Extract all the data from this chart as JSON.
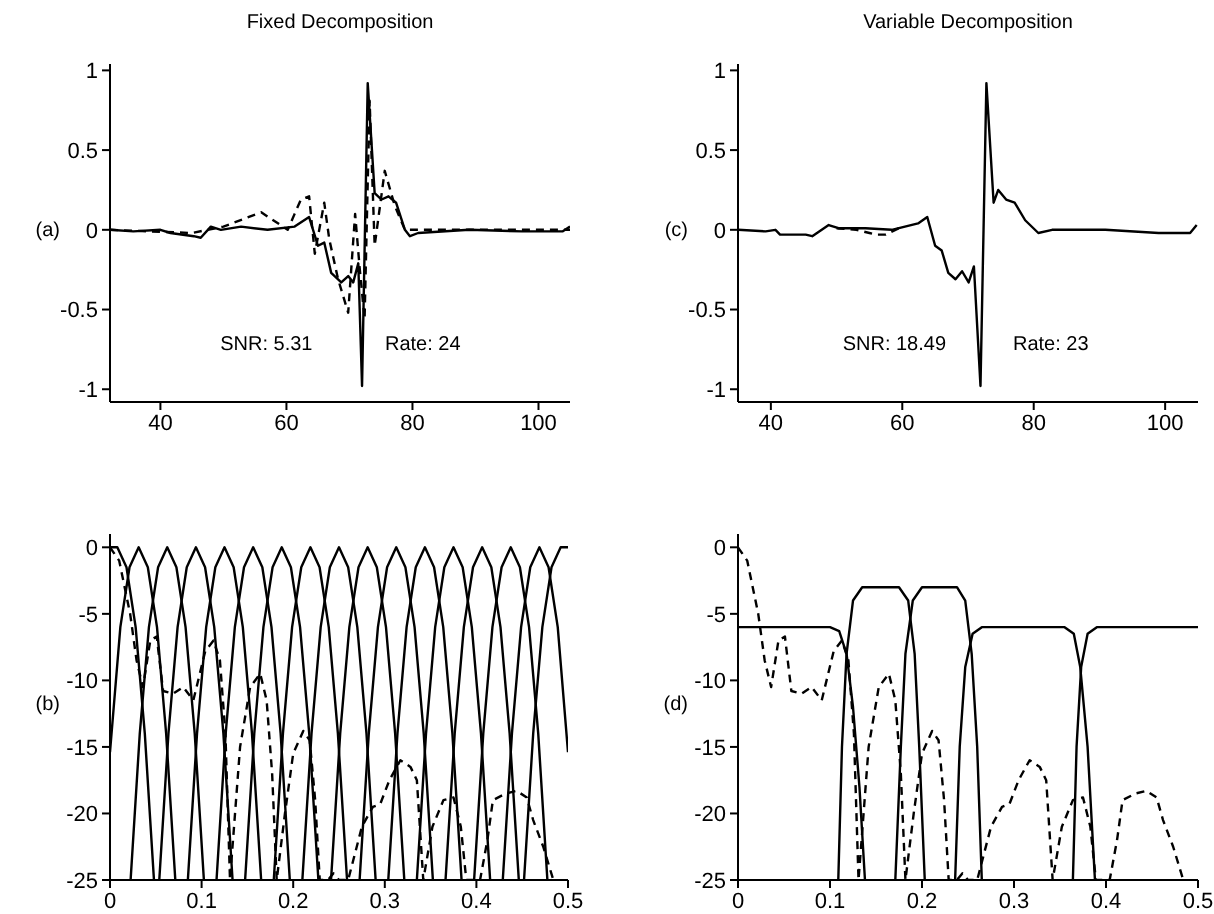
{
  "chart_data": [
    {
      "type": "line",
      "title": "Fixed Decomposition",
      "ylabel": "(a)",
      "xlim": [
        32,
        105
      ],
      "xticks": [
        40,
        60,
        80,
        100
      ],
      "ylim": [
        -1.08,
        1.04
      ],
      "yticks": [
        -1,
        -0.5,
        0,
        0.5,
        1
      ],
      "marker": "none",
      "annotations": [
        "SNR: 5.31",
        "Rate: 24"
      ],
      "series": [
        {
          "color": "#000000",
          "line_style": "dashed",
          "x": [
            32,
            45,
            50,
            56,
            60.2,
            61.3,
            62.3,
            63.6,
            64.5,
            66,
            66.8,
            68.2,
            69.8,
            70.9,
            71.6,
            72.4,
            73.2,
            74,
            75.6,
            77.2,
            78.8,
            80.4,
            90,
            105
          ],
          "values": [
            0,
            -0.02,
            0.02,
            0.11,
            0,
            0.1,
            0.19,
            0.21,
            -0.15,
            0.17,
            -0.06,
            -0.31,
            -0.52,
            0.1,
            -0.23,
            -0.56,
            0.81,
            -0.1,
            0.37,
            0.15,
            0,
            0,
            0,
            0
          ]
        },
        {
          "color": "#000000",
          "line_style": "solid",
          "x": [
            32,
            35.7,
            40,
            41.6,
            45.3,
            46.4,
            48,
            49.6,
            52.8,
            57,
            61.3,
            63.6,
            65,
            66,
            67.1,
            68.7,
            69.8,
            70.6,
            71.4,
            72,
            72.9,
            74,
            75.1,
            76.2,
            77.4,
            78.8,
            79.6,
            80.9,
            89,
            97.4,
            103.8,
            105
          ],
          "values": [
            0,
            -0.01,
            0,
            -0.02,
            -0.04,
            -0.05,
            0.02,
            0,
            0.02,
            0,
            0.02,
            0.08,
            -0.1,
            -0.08,
            -0.27,
            -0.33,
            -0.29,
            -0.33,
            -0.21,
            -0.98,
            0.92,
            0.23,
            0.19,
            0.21,
            0.17,
            0,
            -0.04,
            -0.02,
            0,
            -0.01,
            -0.01,
            0.02
          ]
        }
      ]
    },
    {
      "type": "line",
      "title": "Variable Decomposition",
      "ylabel": "(c)",
      "xlim": [
        35,
        105
      ],
      "xticks": [
        40,
        60,
        80,
        100
      ],
      "ylim": [
        -1.08,
        1.04
      ],
      "yticks": [
        -1,
        -0.5,
        0,
        0.5,
        1
      ],
      "marker": "none",
      "annotations": [
        "SNR: 18.49",
        "Rate: 23"
      ],
      "series": [
        {
          "color": "#000000",
          "line_style": "dashed",
          "x": [
            50,
            53,
            55,
            56,
            57.5,
            60
          ],
          "values": [
            0.01,
            0,
            -0.02,
            -0.03,
            -0.03,
            0.02
          ]
        },
        {
          "color": "#000000",
          "line_style": "solid",
          "x": [
            35,
            39.2,
            40.7,
            41.4,
            45.3,
            46.3,
            48.8,
            50.3,
            54.4,
            58.4,
            60.4,
            62.4,
            63.8,
            65,
            66,
            67,
            68.1,
            69.1,
            70.1,
            70.9,
            71.9,
            72.8,
            73.9,
            74.6,
            75.8,
            77.1,
            78.7,
            80.7,
            82.8,
            90.9,
            99,
            103.8,
            104.8
          ],
          "values": [
            0,
            -0.01,
            0,
            -0.03,
            -0.03,
            -0.04,
            0.03,
            0.01,
            0.01,
            0,
            0.02,
            0.04,
            0.08,
            -0.1,
            -0.13,
            -0.27,
            -0.31,
            -0.26,
            -0.33,
            -0.23,
            -0.98,
            0.92,
            0.17,
            0.25,
            0.19,
            0.17,
            0.06,
            -0.02,
            0,
            0,
            -0.02,
            -0.02,
            0.03
          ]
        }
      ]
    },
    {
      "type": "line",
      "ylabel": "(b)",
      "xlim": [
        0,
        0.5
      ],
      "xticks": [
        0,
        0.1,
        0.2,
        0.3,
        0.4,
        0.5
      ],
      "ylim": [
        -25,
        1
      ],
      "yticks": [
        -25,
        -20,
        -15,
        -10,
        -5,
        0
      ],
      "marker": "none",
      "series": [
        {
          "color": "#000000",
          "line_style": "dashed",
          "x": [
            0,
            0.01,
            0.022,
            0.029,
            0.036,
            0.044,
            0.051,
            0.058,
            0.069,
            0.08,
            0.091,
            0.104,
            0.113,
            0.12,
            0.126,
            0.131,
            0.142,
            0.153,
            0.164,
            0.171,
            0.177,
            0.182,
            0.191,
            0.2,
            0.211,
            0.218,
            0.224,
            0.229,
            0.238,
            0.244,
            0.25,
            0.26,
            0.275,
            0.287,
            0.295,
            0.305,
            0.317,
            0.328,
            0.335,
            0.342,
            0.352,
            0.364,
            0.375,
            0.383,
            0.389,
            0.404,
            0.412,
            0.418,
            0.432,
            0.444,
            0.455,
            0.462,
            0.473,
            0.484
          ],
          "values": [
            0,
            -1,
            -5,
            -8.5,
            -10.5,
            -7,
            -6.7,
            -10.8,
            -11,
            -10.5,
            -11.5,
            -7.8,
            -7,
            -8.5,
            -14,
            -25,
            -15,
            -10.5,
            -9.5,
            -11.5,
            -17,
            -25,
            -20,
            -15.5,
            -13.8,
            -14.5,
            -19,
            -25,
            -25,
            -24.5,
            -25,
            -25,
            -21,
            -19.5,
            -19.3,
            -17.5,
            -16,
            -16.5,
            -17.5,
            -25,
            -21,
            -19,
            -18.8,
            -21,
            -25,
            -25,
            -22,
            -19,
            -18.5,
            -18.3,
            -18.8,
            -20.5,
            -22.5,
            -25
          ]
        },
        {
          "color": "#000000",
          "line_style": "solid",
          "x": [
            0,
            0.008,
            0.018,
            0.028,
            0.038,
            0.048
          ],
          "values": [
            0,
            0,
            -1.5,
            -6,
            -14,
            -25
          ]
        },
        {
          "color": "#000000",
          "line_style": "solid",
          "x": [
            0,
            0.0113,
            0.0213,
            0.0313,
            0.0413,
            0.0513,
            0.0613,
            0.0713
          ],
          "values": [
            -15.4,
            -6,
            -1.5,
            0,
            -1.5,
            -6,
            -14,
            -25
          ]
        },
        {
          "color": "#000000",
          "line_style": "solid",
          "x": [
            0.0225,
            0.0325,
            0.0425,
            0.0525,
            0.0625,
            0.0725,
            0.0825,
            0.0925,
            0.1025
          ],
          "values": [
            -25,
            -14,
            -6,
            -1.5,
            0,
            -1.5,
            -6,
            -14,
            -25
          ]
        },
        {
          "color": "#000000",
          "line_style": "solid",
          "x": [
            0.0538,
            0.0638,
            0.0738,
            0.0838,
            0.0938,
            0.1038,
            0.1138,
            0.1238,
            0.1338
          ],
          "values": [
            -25,
            -14,
            -6,
            -1.5,
            0,
            -1.5,
            -6,
            -14,
            -25
          ]
        },
        {
          "color": "#000000",
          "line_style": "solid",
          "x": [
            0.085,
            0.095,
            0.105,
            0.115,
            0.125,
            0.135,
            0.145,
            0.155,
            0.165
          ],
          "values": [
            -25,
            -14,
            -6,
            -1.5,
            0,
            -1.5,
            -6,
            -14,
            -25
          ]
        },
        {
          "color": "#000000",
          "line_style": "solid",
          "x": [
            0.1163,
            0.1263,
            0.1363,
            0.1463,
            0.1563,
            0.1663,
            0.1763,
            0.1863,
            0.1963
          ],
          "values": [
            -25,
            -14,
            -6,
            -1.5,
            0,
            -1.5,
            -6,
            -14,
            -25
          ]
        },
        {
          "color": "#000000",
          "line_style": "solid",
          "x": [
            0.1475,
            0.1575,
            0.1675,
            0.1775,
            0.1875,
            0.1975,
            0.2075,
            0.2175,
            0.2275
          ],
          "values": [
            -25,
            -14,
            -6,
            -1.5,
            0,
            -1.5,
            -6,
            -14,
            -25
          ]
        },
        {
          "color": "#000000",
          "line_style": "solid",
          "x": [
            0.1788,
            0.1888,
            0.1988,
            0.2088,
            0.2188,
            0.2288,
            0.2388,
            0.2488,
            0.2588
          ],
          "values": [
            -25,
            -14,
            -6,
            -1.5,
            0,
            -1.5,
            -6,
            -14,
            -25
          ]
        },
        {
          "color": "#000000",
          "line_style": "solid",
          "x": [
            0.21,
            0.22,
            0.23,
            0.24,
            0.25,
            0.26,
            0.27,
            0.28,
            0.29
          ],
          "values": [
            -25,
            -14,
            -6,
            -1.5,
            0,
            -1.5,
            -6,
            -14,
            -25
          ]
        },
        {
          "color": "#000000",
          "line_style": "solid",
          "x": [
            0.2413,
            0.2513,
            0.2613,
            0.2713,
            0.2813,
            0.2913,
            0.3013,
            0.3113,
            0.3213
          ],
          "values": [
            -25,
            -14,
            -6,
            -1.5,
            0,
            -1.5,
            -6,
            -14,
            -25
          ]
        },
        {
          "color": "#000000",
          "line_style": "solid",
          "x": [
            0.2725,
            0.2825,
            0.2925,
            0.3025,
            0.3125,
            0.3225,
            0.3325,
            0.3425,
            0.3525
          ],
          "values": [
            -25,
            -14,
            -6,
            -1.5,
            0,
            -1.5,
            -6,
            -14,
            -25
          ]
        },
        {
          "color": "#000000",
          "line_style": "solid",
          "x": [
            0.3038,
            0.3138,
            0.3238,
            0.3338,
            0.3438,
            0.3538,
            0.3638,
            0.3738,
            0.3838
          ],
          "values": [
            -25,
            -14,
            -6,
            -1.5,
            0,
            -1.5,
            -6,
            -14,
            -25
          ]
        },
        {
          "color": "#000000",
          "line_style": "solid",
          "x": [
            0.335,
            0.345,
            0.355,
            0.365,
            0.375,
            0.385,
            0.395,
            0.405,
            0.415
          ],
          "values": [
            -25,
            -14,
            -6,
            -1.5,
            0,
            -1.5,
            -6,
            -14,
            -25
          ]
        },
        {
          "color": "#000000",
          "line_style": "solid",
          "x": [
            0.3663,
            0.3763,
            0.3863,
            0.3963,
            0.4063,
            0.4163,
            0.4263,
            0.4363,
            0.4463
          ],
          "values": [
            -25,
            -14,
            -6,
            -1.5,
            0,
            -1.5,
            -6,
            -14,
            -25
          ]
        },
        {
          "color": "#000000",
          "line_style": "solid",
          "x": [
            0.3975,
            0.4075,
            0.4175,
            0.4275,
            0.4375,
            0.4475,
            0.4575,
            0.4675,
            0.4775
          ],
          "values": [
            -25,
            -14,
            -6,
            -1.5,
            0,
            -1.5,
            -6,
            -14,
            -25
          ]
        },
        {
          "color": "#000000",
          "line_style": "solid",
          "x": [
            0.4288,
            0.4388,
            0.4488,
            0.4588,
            0.4688,
            0.4788,
            0.4888,
            0.5
          ],
          "values": [
            -25,
            -14,
            -6,
            -1.5,
            0,
            -1.5,
            -6,
            -15.4
          ]
        },
        {
          "color": "#000000",
          "line_style": "solid",
          "x": [
            0.452,
            0.462,
            0.472,
            0.482,
            0.492,
            0.5
          ],
          "values": [
            -25,
            -14,
            -6,
            -1.5,
            0,
            0
          ]
        }
      ]
    },
    {
      "type": "line",
      "ylabel": "(d)",
      "xlim": [
        0,
        0.5
      ],
      "xticks": [
        0,
        0.1,
        0.2,
        0.3,
        0.4,
        0.5
      ],
      "ylim": [
        -25,
        1
      ],
      "yticks": [
        -25,
        -20,
        -15,
        -10,
        -5,
        0
      ],
      "marker": "none",
      "series": [
        {
          "color": "#000000",
          "line_style": "dashed",
          "x": [
            0,
            0.01,
            0.022,
            0.029,
            0.036,
            0.044,
            0.051,
            0.058,
            0.069,
            0.08,
            0.091,
            0.104,
            0.113,
            0.12,
            0.126,
            0.131,
            0.142,
            0.153,
            0.164,
            0.171,
            0.177,
            0.182,
            0.191,
            0.2,
            0.211,
            0.218,
            0.224,
            0.229,
            0.238,
            0.244,
            0.25,
            0.26,
            0.275,
            0.287,
            0.295,
            0.305,
            0.317,
            0.328,
            0.335,
            0.342,
            0.352,
            0.364,
            0.375,
            0.383,
            0.389,
            0.404,
            0.412,
            0.418,
            0.432,
            0.444,
            0.455,
            0.462,
            0.473,
            0.484
          ],
          "values": [
            0,
            -1,
            -5,
            -8.5,
            -10.5,
            -7,
            -6.7,
            -10.8,
            -11,
            -10.5,
            -11.5,
            -7.8,
            -7,
            -8.5,
            -14,
            -25,
            -15,
            -10.5,
            -9.5,
            -11.5,
            -17,
            -25,
            -20,
            -15.5,
            -13.8,
            -14.5,
            -19,
            -25,
            -25,
            -24.5,
            -25,
            -25,
            -21,
            -19.5,
            -19.3,
            -17.5,
            -16,
            -16.5,
            -17.5,
            -25,
            -21,
            -19,
            -18.8,
            -21,
            -25,
            -25,
            -22,
            -19,
            -18.5,
            -18.3,
            -18.8,
            -20.5,
            -22.5,
            -25
          ]
        },
        {
          "color": "#000000",
          "line_style": "solid",
          "x": [
            0,
            0.1,
            0.11,
            0.118,
            0.125,
            0.132,
            0.138
          ],
          "values": [
            -6,
            -6,
            -6.3,
            -8,
            -12,
            -18,
            -25
          ]
        },
        {
          "color": "#000000",
          "line_style": "solid",
          "x": [
            0.109,
            0.113,
            0.118,
            0.125,
            0.135,
            0.175,
            0.185,
            0.192,
            0.197,
            0.203
          ],
          "values": [
            -25,
            -15,
            -8,
            -4,
            -3,
            -3,
            -4,
            -8,
            -15,
            -25
          ]
        },
        {
          "color": "#000000",
          "line_style": "solid",
          "x": [
            0.171,
            0.177,
            0.182,
            0.19,
            0.2,
            0.238,
            0.247,
            0.254,
            0.26,
            0.265
          ],
          "values": [
            -25,
            -15,
            -8,
            -4,
            -3,
            -3,
            -4,
            -8,
            -15,
            -25
          ]
        },
        {
          "color": "#000000",
          "line_style": "solid",
          "x": [
            0.236,
            0.241,
            0.247,
            0.255,
            0.265,
            0.355,
            0.365,
            0.372,
            0.38,
            0.388
          ],
          "values": [
            -25,
            -15,
            -9,
            -6.5,
            -6,
            -6,
            -6.5,
            -9,
            -15,
            -25
          ]
        },
        {
          "color": "#000000",
          "line_style": "solid",
          "x": [
            0.364,
            0.368,
            0.373,
            0.38,
            0.39,
            0.5
          ],
          "values": [
            -25,
            -15,
            -9,
            -6.5,
            -6,
            -6
          ]
        }
      ]
    }
  ]
}
